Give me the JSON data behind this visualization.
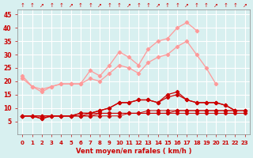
{
  "x": [
    0,
    1,
    2,
    3,
    4,
    5,
    6,
    7,
    8,
    9,
    10,
    11,
    12,
    13,
    14,
    15,
    16,
    17,
    18,
    19,
    20,
    21,
    22,
    23
  ],
  "line1": [
    22,
    18,
    16,
    18,
    19,
    19,
    19,
    24,
    22,
    26,
    31,
    29,
    26,
    32,
    35,
    36,
    40,
    42,
    39,
    null,
    null,
    null,
    null,
    null
  ],
  "line2": [
    21,
    18,
    17,
    18,
    19,
    19,
    19,
    21,
    20,
    23,
    26,
    25,
    23,
    27,
    29,
    30,
    33,
    35,
    30,
    25,
    19,
    null,
    null,
    null
  ],
  "line3": [
    null,
    null,
    null,
    null,
    null,
    null,
    null,
    null,
    null,
    null,
    null,
    null,
    null,
    null,
    null,
    null,
    null,
    null,
    null,
    null,
    19,
    null,
    null,
    null
  ],
  "line4": [
    7,
    7,
    6,
    7,
    7,
    7,
    8,
    8,
    9,
    10,
    12,
    12,
    13,
    13,
    12,
    15,
    16,
    13,
    12,
    12,
    12,
    11,
    9,
    null
  ],
  "line5": [
    7,
    7,
    6,
    7,
    7,
    7,
    8,
    8,
    9,
    10,
    12,
    12,
    13,
    13,
    12,
    14,
    15,
    13,
    12,
    12,
    12,
    11,
    9,
    null
  ],
  "line6": [
    7,
    7,
    7,
    7,
    7,
    7,
    7,
    8,
    8,
    8,
    8,
    8,
    8,
    9,
    9,
    9,
    9,
    9,
    9,
    9,
    9,
    9,
    9,
    9
  ],
  "line7": [
    7,
    7,
    7,
    7,
    7,
    7,
    7,
    7,
    8,
    8,
    8,
    8,
    8,
    8,
    8,
    8,
    9,
    9,
    9,
    9,
    9,
    9,
    9,
    9
  ],
  "line8": [
    7,
    7,
    7,
    7,
    7,
    7,
    7,
    7,
    7,
    7,
    7,
    8,
    8,
    8,
    8,
    8,
    8,
    8,
    8,
    8,
    8,
    8,
    8,
    8
  ],
  "bg_color": "#d8f0f0",
  "grid_color": "#ffffff",
  "line_color_light": "#ff9999",
  "line_color_dark": "#cc0000",
  "xlabel": "Vent moyen/en rafales ( km/h )",
  "ylim": [
    0,
    47
  ],
  "xlim": [
    0,
    23
  ],
  "yticks": [
    5,
    10,
    15,
    20,
    25,
    30,
    35,
    40,
    45
  ],
  "xticks": [
    0,
    1,
    2,
    3,
    4,
    5,
    6,
    7,
    8,
    9,
    10,
    11,
    12,
    13,
    14,
    15,
    16,
    17,
    18,
    19,
    20,
    21,
    22,
    23
  ]
}
